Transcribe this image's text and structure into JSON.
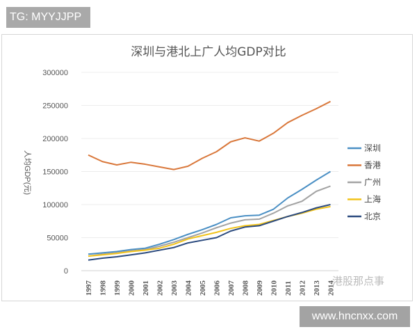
{
  "watermark_top": "TG: MYYJJPP",
  "watermark_bottom": "www.hncnxx.com",
  "chart_watermark": "港股那点事",
  "chart_data": {
    "type": "line",
    "title": "深圳与港北上广人均GDP对比",
    "xlabel": "",
    "ylabel": "人均GDP(元)",
    "ylim": [
      0,
      300000
    ],
    "yticks": [
      "0",
      "50000",
      "100000",
      "150000",
      "200000",
      "250000",
      "300000"
    ],
    "grid": true,
    "legend_position": "right",
    "x": [
      "1997",
      "1998",
      "1999",
      "2000",
      "2001",
      "2002",
      "2003",
      "2004",
      "2005",
      "2006",
      "2007",
      "2008",
      "2009",
      "2010",
      "2011",
      "2012",
      "2013",
      "2014"
    ],
    "series": [
      {
        "name": "深圳",
        "color": "#4a8fc4",
        "values": [
          25000,
          27000,
          29000,
          32000,
          34000,
          40000,
          47000,
          55000,
          62000,
          70000,
          80000,
          83000,
          84000,
          93000,
          110000,
          123000,
          137000,
          150000
        ]
      },
      {
        "name": "香港",
        "color": "#d9773a",
        "values": [
          175000,
          165000,
          160000,
          164000,
          161000,
          157000,
          153000,
          158000,
          170000,
          180000,
          195000,
          201000,
          196000,
          208000,
          224000,
          235000,
          245000,
          256000
        ]
      },
      {
        "name": "广州",
        "color": "#a3a3a3",
        "values": [
          22000,
          25000,
          27000,
          30000,
          32000,
          37000,
          43000,
          50000,
          57000,
          65000,
          72000,
          77000,
          78000,
          87000,
          98000,
          105000,
          120000,
          128000
        ]
      },
      {
        "name": "上海",
        "color": "#f2c31a",
        "values": [
          22000,
          24000,
          26000,
          29000,
          31000,
          34000,
          40000,
          48000,
          53000,
          58000,
          64000,
          68000,
          70000,
          76000,
          82000,
          87000,
          93000,
          97000
        ]
      },
      {
        "name": "北京",
        "color": "#2b4a7e",
        "values": [
          16000,
          19000,
          21000,
          24000,
          27000,
          31000,
          35000,
          42000,
          46000,
          50000,
          60000,
          66000,
          68000,
          75000,
          82000,
          88000,
          95000,
          100000
        ]
      }
    ]
  }
}
